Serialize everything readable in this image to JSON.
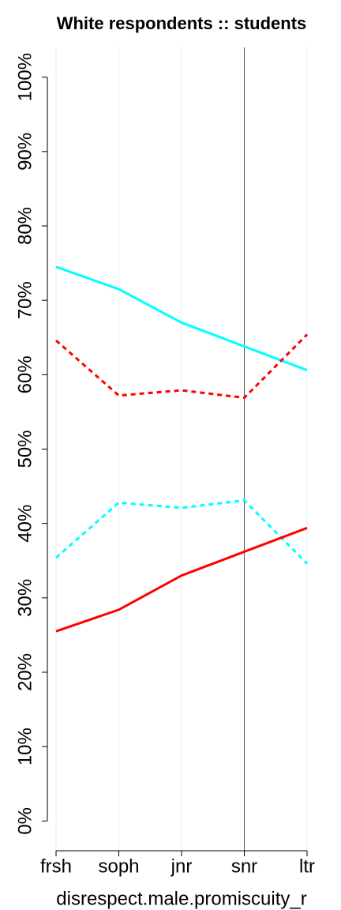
{
  "chart_data": {
    "type": "line",
    "title": "White respondents :: students",
    "x_label": "disrespect.male.promiscuity_r",
    "categories": [
      "frsh",
      "soph",
      "jnr",
      "snr",
      "ltr"
    ],
    "series": [
      {
        "color": "#00ffff",
        "dash": "solid",
        "values": [
          74.5,
          71.5,
          67,
          63.8,
          60.6
        ]
      },
      {
        "color": "#ff0000",
        "dash": "dashed",
        "values": [
          64.6,
          57.2,
          57.9,
          56.9,
          65.4
        ]
      },
      {
        "color": "#00ffff",
        "dash": "dashed",
        "values": [
          35.4,
          42.8,
          42.1,
          43.1,
          34.6
        ]
      },
      {
        "color": "#ff0000",
        "dash": "solid",
        "values": [
          25.5,
          28.4,
          33,
          36.2,
          39.4
        ]
      }
    ],
    "ylim": [
      -4,
      104
    ],
    "yticks": [
      {
        "value": 0,
        "label": "0%"
      },
      {
        "value": 10,
        "label": "10%"
      },
      {
        "value": 20,
        "label": "20%"
      },
      {
        "value": 30,
        "label": "30%"
      },
      {
        "value": 40,
        "label": "40%"
      },
      {
        "value": 50,
        "label": "50%"
      },
      {
        "value": 60,
        "label": "60%"
      },
      {
        "value": 70,
        "label": "70%"
      },
      {
        "value": 80,
        "label": "80%"
      },
      {
        "value": 90,
        "label": "90%"
      },
      {
        "value": 100,
        "label": "100%"
      }
    ],
    "grid": true,
    "vline": "snr"
  }
}
